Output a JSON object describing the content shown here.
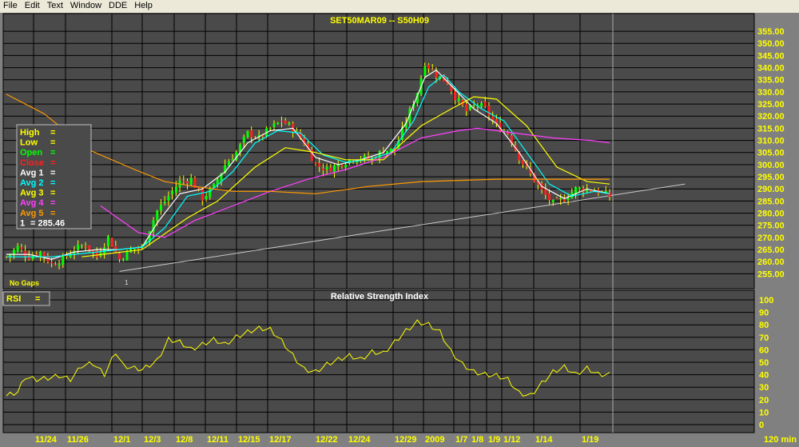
{
  "menu": [
    "File",
    "Edit",
    "Text",
    "Window",
    "DDE",
    "Help"
  ],
  "price_panel": {
    "title": "SET50MAR09  --  S50H09",
    "legend": [
      {
        "label": "High",
        "value": "=",
        "color": "#ffff00"
      },
      {
        "label": "Low",
        "value": "=",
        "color": "#ffff00"
      },
      {
        "label": "Open",
        "value": "=",
        "color": "#00ff00"
      },
      {
        "label": "Close",
        "value": "=",
        "color": "#ff2020"
      },
      {
        "label": "Avg  1",
        "value": "=",
        "color": "#ffffff"
      },
      {
        "label": "Avg  2",
        "value": "=",
        "color": "#00ffff"
      },
      {
        "label": "Avg  3",
        "value": "=",
        "color": "#ffff00"
      },
      {
        "label": "Avg  4",
        "value": "=",
        "color": "#ff40ff"
      },
      {
        "label": "Avg  5",
        "value": "=",
        "color": "#ff9900"
      },
      {
        "label": "1",
        "value": "=   285.46",
        "color": "#ffffff"
      }
    ],
    "no_gaps": "No Gaps",
    "trend_marker": "1",
    "y_ticks": [
      "355.00",
      "350.00",
      "345.00",
      "340.00",
      "335.00",
      "330.00",
      "325.00",
      "320.00",
      "315.00",
      "310.00",
      "305.00",
      "300.00",
      "295.00",
      "290.00",
      "285.00",
      "280.00",
      "275.00",
      "270.00",
      "265.00",
      "260.00",
      "255.00"
    ]
  },
  "rsi_panel": {
    "title": "Relative  Strength  Index",
    "legend_label": "RSI",
    "legend_value": "=",
    "y_ticks": [
      "100",
      "90",
      "80",
      "70",
      "60",
      "50",
      "40",
      "30",
      "20",
      "10",
      "0"
    ]
  },
  "x_axis": {
    "labels": [
      "11/24",
      "11/26",
      "12/1",
      "12/3",
      "12/8",
      "12/11",
      "12/15",
      "12/17",
      "12/22",
      "12/24",
      "12/29",
      "2009",
      "1/7",
      "1/8",
      "1/9",
      "1/12",
      "1/14",
      "1/19"
    ],
    "interval": "120  min"
  },
  "colors": {
    "plot_bg": "#4a4a4a",
    "grid": "#000000",
    "axis_text": "#ffff00",
    "up_candle": "#00ff00",
    "down_candle": "#ff2020",
    "wick": "#ffff00",
    "trendline": "#c8c8c8"
  },
  "chart_data": [
    {
      "type": "candlestick",
      "title": "SET50MAR09  --  S50H09",
      "ylim": [
        252,
        358
      ],
      "x_categories": [
        "11/24",
        "11/26",
        "12/1",
        "12/3",
        "12/8",
        "12/11",
        "12/15",
        "12/17",
        "12/22",
        "12/24",
        "12/29",
        "2009",
        "1/7",
        "1/8",
        "1/9",
        "1/12",
        "1/14",
        "1/19"
      ],
      "close_path": [
        [
          0,
          262
        ],
        [
          3,
          266
        ],
        [
          6,
          262
        ],
        [
          9,
          264
        ],
        [
          12,
          259
        ],
        [
          15,
          261
        ],
        [
          18,
          265
        ],
        [
          21,
          267
        ],
        [
          24,
          262
        ],
        [
          27,
          270
        ],
        [
          30,
          261
        ],
        [
          33,
          265
        ],
        [
          36,
          266
        ],
        [
          40,
          281
        ],
        [
          43,
          287
        ],
        [
          46,
          293
        ],
        [
          49,
          294
        ],
        [
          52,
          286
        ],
        [
          55,
          291
        ],
        [
          58,
          300
        ],
        [
          61,
          305
        ],
        [
          64,
          313
        ],
        [
          67,
          311
        ],
        [
          70,
          315
        ],
        [
          73,
          318
        ],
        [
          76,
          315
        ],
        [
          79,
          309
        ],
        [
          82,
          300
        ],
        [
          85,
          298
        ],
        [
          88,
          300
        ],
        [
          91,
          302
        ],
        [
          94,
          303
        ],
        [
          97,
          302
        ],
        [
          100,
          306
        ],
        [
          103,
          306
        ],
        [
          106,
          318
        ],
        [
          109,
          330
        ],
        [
          111,
          342
        ],
        [
          114,
          337
        ],
        [
          117,
          334
        ],
        [
          119,
          328
        ],
        [
          122,
          322
        ],
        [
          125,
          325
        ],
        [
          127,
          323
        ],
        [
          130,
          316
        ],
        [
          133,
          313
        ],
        [
          136,
          303
        ],
        [
          139,
          296
        ],
        [
          142,
          289
        ],
        [
          145,
          284
        ],
        [
          148,
          286
        ],
        [
          151,
          290
        ],
        [
          154,
          290
        ],
        [
          157,
          289
        ],
        [
          160,
          287
        ]
      ],
      "moving_averages": [
        {
          "name": "Avg  1",
          "color": "#ffffff",
          "points": [
            [
              0,
              263
            ],
            [
              6,
              263
            ],
            [
              12,
              261
            ],
            [
              18,
              264
            ],
            [
              24,
              265
            ],
            [
              30,
              265
            ],
            [
              36,
              266
            ],
            [
              40,
              276
            ],
            [
              46,
              288
            ],
            [
              52,
              290
            ],
            [
              58,
              297
            ],
            [
              64,
              309
            ],
            [
              70,
              314
            ],
            [
              76,
              315
            ],
            [
              82,
              303
            ],
            [
              88,
              300
            ],
            [
              94,
              302
            ],
            [
              100,
              305
            ],
            [
              106,
              317
            ],
            [
              111,
              336
            ],
            [
              114,
              339
            ],
            [
              119,
              331
            ],
            [
              124,
              323
            ],
            [
              130,
              317
            ],
            [
              136,
              305
            ],
            [
              142,
              291
            ],
            [
              148,
              286
            ],
            [
              154,
              290
            ],
            [
              160,
              288
            ]
          ]
        },
        {
          "name": "Avg  2",
          "color": "#00ffff",
          "points": [
            [
              0,
              262
            ],
            [
              12,
              262
            ],
            [
              24,
              264
            ],
            [
              36,
              266
            ],
            [
              42,
              274
            ],
            [
              48,
              287
            ],
            [
              54,
              289
            ],
            [
              60,
              297
            ],
            [
              66,
              309
            ],
            [
              72,
              314
            ],
            [
              78,
              313
            ],
            [
              84,
              304
            ],
            [
              90,
              301
            ],
            [
              96,
              302
            ],
            [
              102,
              305
            ],
            [
              108,
              318
            ],
            [
              112,
              332
            ],
            [
              116,
              337
            ],
            [
              120,
              330
            ],
            [
              126,
              323
            ],
            [
              132,
              318
            ],
            [
              138,
              305
            ],
            [
              144,
              292
            ],
            [
              150,
              287
            ],
            [
              156,
              289
            ],
            [
              160,
              288
            ]
          ]
        },
        {
          "name": "Avg  3",
          "color": "#ffff00",
          "points": [
            [
              20,
              262
            ],
            [
              36,
              265
            ],
            [
              48,
              278
            ],
            [
              56,
              285
            ],
            [
              66,
              299
            ],
            [
              74,
              307
            ],
            [
              82,
              305
            ],
            [
              90,
              302
            ],
            [
              100,
              302
            ],
            [
              110,
              316
            ],
            [
              118,
              323
            ],
            [
              124,
              328
            ],
            [
              130,
              327
            ],
            [
              138,
              316
            ],
            [
              146,
              299
            ],
            [
              154,
              293
            ],
            [
              160,
              292
            ]
          ]
        },
        {
          "name": "Avg  4",
          "color": "#ff40ff",
          "points": [
            [
              25,
              283
            ],
            [
              35,
              272
            ],
            [
              42,
              270
            ],
            [
              50,
              277
            ],
            [
              60,
              283
            ],
            [
              70,
              289
            ],
            [
              80,
              294
            ],
            [
              90,
              298
            ],
            [
              100,
              303
            ],
            [
              110,
              311
            ],
            [
              120,
              314
            ],
            [
              125,
              315
            ],
            [
              135,
              313
            ],
            [
              145,
              311
            ],
            [
              155,
              310
            ],
            [
              160,
              309
            ]
          ]
        },
        {
          "name": "Avg  5",
          "color": "#ff9900",
          "points": [
            [
              0,
              329
            ],
            [
              10,
              321
            ],
            [
              22,
              306
            ],
            [
              34,
              298
            ],
            [
              42,
              293
            ],
            [
              50,
              291
            ],
            [
              60,
              289
            ],
            [
              70,
              289
            ],
            [
              82,
              288
            ],
            [
              96,
              291
            ],
            [
              110,
              293
            ],
            [
              130,
              294
            ],
            [
              150,
              294
            ],
            [
              160,
              294
            ]
          ]
        }
      ],
      "trendline": {
        "from": [
          30,
          256
        ],
        "to": [
          180,
          292
        ]
      }
    },
    {
      "type": "line",
      "title": "Relative  Strength  Index",
      "ylim": [
        0,
        100
      ],
      "series": [
        {
          "name": "RSI",
          "points": [
            [
              0,
              23
            ],
            [
              3,
              26
            ],
            [
              5,
              38
            ],
            [
              8,
              36
            ],
            [
              11,
              37
            ],
            [
              14,
              39
            ],
            [
              17,
              36
            ],
            [
              20,
              47
            ],
            [
              23,
              49
            ],
            [
              26,
              40
            ],
            [
              29,
              58
            ],
            [
              31,
              47
            ],
            [
              34,
              45
            ],
            [
              36,
              44
            ],
            [
              40,
              51
            ],
            [
              43,
              68
            ],
            [
              46,
              66
            ],
            [
              49,
              60
            ],
            [
              52,
              64
            ],
            [
              55,
              68
            ],
            [
              58,
              64
            ],
            [
              61,
              70
            ],
            [
              64,
              74
            ],
            [
              67,
              77
            ],
            [
              70,
              76
            ],
            [
              73,
              67
            ],
            [
              76,
              55
            ],
            [
              79,
              44
            ],
            [
              82,
              42
            ],
            [
              85,
              48
            ],
            [
              88,
              52
            ],
            [
              91,
              55
            ],
            [
              94,
              52
            ],
            [
              97,
              58
            ],
            [
              100,
              57
            ],
            [
              103,
              66
            ],
            [
              106,
              75
            ],
            [
              109,
              82
            ],
            [
              112,
              80
            ],
            [
              115,
              74
            ],
            [
              118,
              58
            ],
            [
              121,
              48
            ],
            [
              124,
              42
            ],
            [
              127,
              40
            ],
            [
              130,
              39
            ],
            [
              133,
              36
            ],
            [
              136,
              25
            ],
            [
              139,
              23
            ],
            [
              142,
              33
            ],
            [
              145,
              42
            ],
            [
              148,
              46
            ],
            [
              151,
              40
            ],
            [
              154,
              45
            ],
            [
              157,
              40
            ],
            [
              160,
              40
            ]
          ]
        }
      ]
    }
  ]
}
